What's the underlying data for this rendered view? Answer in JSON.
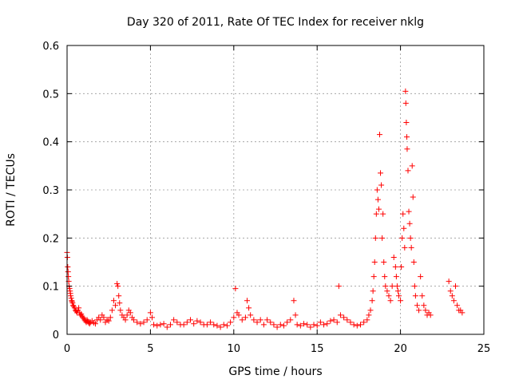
{
  "chart_data": {
    "type": "scatter",
    "title": "Day 320 of 2011, Rate Of TEC Index for receiver nklg",
    "xlabel": "GPS time / hours",
    "ylabel": "ROTI / TECUs",
    "xlim": [
      0,
      25
    ],
    "ylim": [
      0,
      0.6
    ],
    "x_ticks": [
      0,
      5,
      10,
      15,
      20,
      25
    ],
    "y_ticks": [
      0,
      0.1,
      0.2,
      0.3,
      0.4,
      0.5,
      0.6
    ],
    "x_tick_labels": [
      "0",
      "5",
      "10",
      "15",
      "20",
      "25"
    ],
    "y_tick_labels": [
      "0",
      "0.1",
      "0.2",
      "0.3",
      "0.4",
      "0.5",
      "0.6"
    ],
    "grid": true,
    "marker": "plus",
    "color": "#ff0000",
    "series": [
      {
        "points": [
          [
            0.0,
            0.17
          ],
          [
            0.02,
            0.16
          ],
          [
            0.04,
            0.14
          ],
          [
            0.06,
            0.13
          ],
          [
            0.08,
            0.12
          ],
          [
            0.1,
            0.11
          ],
          [
            0.12,
            0.1
          ],
          [
            0.15,
            0.095
          ],
          [
            0.18,
            0.09
          ],
          [
            0.2,
            0.085
          ],
          [
            0.22,
            0.08
          ],
          [
            0.25,
            0.075
          ],
          [
            0.28,
            0.07
          ],
          [
            0.3,
            0.068
          ],
          [
            0.33,
            0.065
          ],
          [
            0.36,
            0.06
          ],
          [
            0.4,
            0.058
          ],
          [
            0.45,
            0.055
          ],
          [
            0.5,
            0.05
          ],
          [
            0.55,
            0.048
          ],
          [
            0.6,
            0.045
          ],
          [
            0.65,
            0.05
          ],
          [
            0.7,
            0.055
          ],
          [
            0.75,
            0.045
          ],
          [
            0.8,
            0.04
          ],
          [
            0.85,
            0.042
          ],
          [
            0.9,
            0.038
          ],
          [
            0.95,
            0.035
          ],
          [
            1.0,
            0.033
          ],
          [
            1.05,
            0.03
          ],
          [
            1.1,
            0.028
          ],
          [
            1.15,
            0.025
          ],
          [
            1.2,
            0.03
          ],
          [
            1.25,
            0.027
          ],
          [
            1.3,
            0.024
          ],
          [
            1.35,
            0.022
          ],
          [
            1.4,
            0.025
          ],
          [
            1.5,
            0.028
          ],
          [
            1.6,
            0.024
          ],
          [
            1.7,
            0.022
          ],
          [
            1.8,
            0.03
          ],
          [
            1.9,
            0.035
          ],
          [
            2.0,
            0.03
          ],
          [
            2.1,
            0.04
          ],
          [
            2.2,
            0.035
          ],
          [
            2.3,
            0.025
          ],
          [
            2.4,
            0.03
          ],
          [
            2.5,
            0.028
          ],
          [
            2.6,
            0.035
          ],
          [
            2.7,
            0.05
          ],
          [
            2.8,
            0.07
          ],
          [
            2.9,
            0.06
          ],
          [
            3.0,
            0.105
          ],
          [
            3.05,
            0.1
          ],
          [
            3.1,
            0.08
          ],
          [
            3.15,
            0.065
          ],
          [
            3.2,
            0.05
          ],
          [
            3.3,
            0.04
          ],
          [
            3.4,
            0.035
          ],
          [
            3.5,
            0.03
          ],
          [
            3.6,
            0.04
          ],
          [
            3.7,
            0.05
          ],
          [
            3.8,
            0.045
          ],
          [
            3.9,
            0.035
          ],
          [
            4.0,
            0.03
          ],
          [
            4.2,
            0.025
          ],
          [
            4.4,
            0.022
          ],
          [
            4.6,
            0.025
          ],
          [
            4.8,
            0.03
          ],
          [
            5.0,
            0.045
          ],
          [
            5.1,
            0.035
          ],
          [
            5.2,
            0.02
          ],
          [
            5.4,
            0.018
          ],
          [
            5.6,
            0.02
          ],
          [
            5.8,
            0.022
          ],
          [
            6.0,
            0.015
          ],
          [
            6.2,
            0.02
          ],
          [
            6.4,
            0.03
          ],
          [
            6.6,
            0.025
          ],
          [
            6.8,
            0.02
          ],
          [
            7.0,
            0.02
          ],
          [
            7.2,
            0.025
          ],
          [
            7.4,
            0.03
          ],
          [
            7.6,
            0.022
          ],
          [
            7.8,
            0.028
          ],
          [
            8.0,
            0.025
          ],
          [
            8.2,
            0.02
          ],
          [
            8.4,
            0.02
          ],
          [
            8.6,
            0.025
          ],
          [
            8.8,
            0.02
          ],
          [
            9.0,
            0.018
          ],
          [
            9.2,
            0.015
          ],
          [
            9.4,
            0.02
          ],
          [
            9.6,
            0.018
          ],
          [
            9.8,
            0.025
          ],
          [
            10.0,
            0.035
          ],
          [
            10.1,
            0.095
          ],
          [
            10.2,
            0.045
          ],
          [
            10.3,
            0.04
          ],
          [
            10.5,
            0.03
          ],
          [
            10.7,
            0.035
          ],
          [
            10.8,
            0.07
          ],
          [
            10.9,
            0.055
          ],
          [
            11.0,
            0.04
          ],
          [
            11.2,
            0.03
          ],
          [
            11.4,
            0.025
          ],
          [
            11.6,
            0.03
          ],
          [
            11.8,
            0.02
          ],
          [
            12.0,
            0.03
          ],
          [
            12.2,
            0.025
          ],
          [
            12.4,
            0.02
          ],
          [
            12.6,
            0.015
          ],
          [
            12.8,
            0.02
          ],
          [
            13.0,
            0.018
          ],
          [
            13.2,
            0.025
          ],
          [
            13.4,
            0.03
          ],
          [
            13.6,
            0.07
          ],
          [
            13.7,
            0.04
          ],
          [
            13.8,
            0.02
          ],
          [
            14.0,
            0.018
          ],
          [
            14.2,
            0.022
          ],
          [
            14.4,
            0.02
          ],
          [
            14.6,
            0.015
          ],
          [
            14.8,
            0.02
          ],
          [
            15.0,
            0.018
          ],
          [
            15.2,
            0.025
          ],
          [
            15.4,
            0.02
          ],
          [
            15.6,
            0.022
          ],
          [
            15.8,
            0.028
          ],
          [
            16.0,
            0.03
          ],
          [
            16.2,
            0.025
          ],
          [
            16.3,
            0.1
          ],
          [
            16.4,
            0.04
          ],
          [
            16.6,
            0.035
          ],
          [
            16.8,
            0.03
          ],
          [
            17.0,
            0.025
          ],
          [
            17.2,
            0.02
          ],
          [
            17.4,
            0.018
          ],
          [
            17.6,
            0.02
          ],
          [
            17.8,
            0.025
          ],
          [
            18.0,
            0.03
          ],
          [
            18.1,
            0.04
          ],
          [
            18.2,
            0.05
          ],
          [
            18.3,
            0.07
          ],
          [
            18.35,
            0.09
          ],
          [
            18.4,
            0.12
          ],
          [
            18.45,
            0.15
          ],
          [
            18.5,
            0.2
          ],
          [
            18.55,
            0.25
          ],
          [
            18.6,
            0.3
          ],
          [
            18.65,
            0.28
          ],
          [
            18.7,
            0.26
          ],
          [
            18.75,
            0.415
          ],
          [
            18.8,
            0.335
          ],
          [
            18.85,
            0.31
          ],
          [
            18.9,
            0.2
          ],
          [
            18.95,
            0.25
          ],
          [
            19.0,
            0.15
          ],
          [
            19.05,
            0.12
          ],
          [
            19.1,
            0.1
          ],
          [
            19.2,
            0.09
          ],
          [
            19.3,
            0.08
          ],
          [
            19.4,
            0.07
          ],
          [
            19.5,
            0.1
          ],
          [
            19.6,
            0.16
          ],
          [
            19.7,
            0.14
          ],
          [
            19.75,
            0.12
          ],
          [
            19.8,
            0.1
          ],
          [
            19.85,
            0.09
          ],
          [
            19.9,
            0.08
          ],
          [
            20.0,
            0.07
          ],
          [
            20.05,
            0.14
          ],
          [
            20.1,
            0.2
          ],
          [
            20.15,
            0.25
          ],
          [
            20.2,
            0.22
          ],
          [
            20.25,
            0.18
          ],
          [
            20.3,
            0.505
          ],
          [
            20.32,
            0.48
          ],
          [
            20.35,
            0.44
          ],
          [
            20.38,
            0.41
          ],
          [
            20.4,
            0.385
          ],
          [
            20.45,
            0.34
          ],
          [
            20.5,
            0.255
          ],
          [
            20.55,
            0.23
          ],
          [
            20.6,
            0.2
          ],
          [
            20.65,
            0.18
          ],
          [
            20.7,
            0.35
          ],
          [
            20.75,
            0.285
          ],
          [
            20.8,
            0.15
          ],
          [
            20.85,
            0.1
          ],
          [
            20.9,
            0.08
          ],
          [
            21.0,
            0.06
          ],
          [
            21.1,
            0.05
          ],
          [
            21.2,
            0.12
          ],
          [
            21.3,
            0.08
          ],
          [
            21.4,
            0.06
          ],
          [
            21.5,
            0.05
          ],
          [
            21.6,
            0.04
          ],
          [
            21.7,
            0.045
          ],
          [
            21.8,
            0.04
          ],
          [
            22.9,
            0.11
          ],
          [
            23.0,
            0.09
          ],
          [
            23.1,
            0.08
          ],
          [
            23.2,
            0.07
          ],
          [
            23.3,
            0.1
          ],
          [
            23.4,
            0.06
          ],
          [
            23.5,
            0.05
          ],
          [
            23.6,
            0.05
          ],
          [
            23.7,
            0.045
          ]
        ]
      }
    ]
  }
}
